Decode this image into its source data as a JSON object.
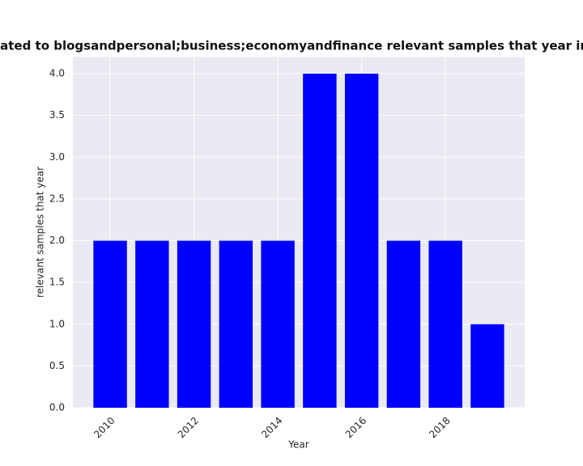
{
  "chart_data": {
    "type": "bar",
    "title": "re related to blogsandpersonal;business;economyandfinance relevant samples that year in priv",
    "x_label": "Year",
    "y_label": "relevant samples that year",
    "x": [
      2010,
      2011,
      2012,
      2013,
      2014,
      2015,
      2016,
      2017,
      2018,
      2019
    ],
    "values": [
      2,
      2,
      2,
      2,
      2,
      4,
      4,
      2,
      2,
      1
    ],
    "color": "#0000ff",
    "xlim": [
      2009.11,
      2019.89
    ],
    "xticks": [
      2010,
      2012,
      2014,
      2016,
      2018
    ],
    "ylim": [
      0,
      4.2
    ],
    "yticks": [
      {
        "value": 0,
        "label": "0.0"
      },
      {
        "value": 0.5,
        "label": "0.5"
      },
      {
        "value": 1,
        "label": "1.0"
      },
      {
        "value": 1.5,
        "label": "1.5"
      },
      {
        "value": 2,
        "label": "2.0"
      },
      {
        "value": 2.5,
        "label": "2.5"
      },
      {
        "value": 3,
        "label": "3.0"
      },
      {
        "value": 3.5,
        "label": "3.5"
      },
      {
        "value": 4,
        "label": "4.0"
      }
    ],
    "grid": true
  }
}
